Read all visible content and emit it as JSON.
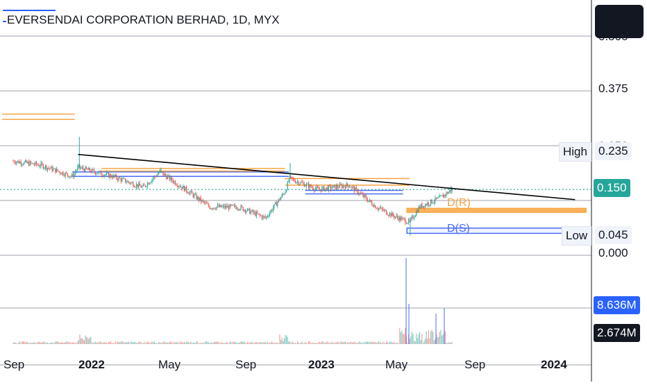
{
  "header": {
    "title": "EVERSENDAI CORPORATION BERHAD, 1D, MYX"
  },
  "colors": {
    "up": "#26a69a",
    "down": "#ef5350",
    "grid": "#b2b5be",
    "zone_orange": "#f7a440",
    "zone_blue": "#4a6cf7",
    "trend": "#000000",
    "last_price_bg": "#26a69a",
    "volume_badge_blue": "#2962ff",
    "volume_badge_dark": "#131722"
  },
  "icons": {
    "corner": "square-panel-icon"
  },
  "chart_data": {
    "type": "candlestick",
    "title": "EVERSENDAI CORPORATION BERHAD, 1D, MYX",
    "price_axis": {
      "ticks": [
        "0.500",
        "0.375",
        "0.250",
        "0.125",
        "0.000"
      ],
      "visible_ticks": [
        "0.375",
        "0.125",
        "0.000"
      ],
      "ylim": [
        -0.01,
        0.52
      ]
    },
    "time_axis": {
      "labels": [
        "Sep",
        "2022",
        "May",
        "Sep",
        "2023",
        "May",
        "Sep",
        "2024"
      ],
      "bold": [
        "2022",
        "2023",
        "2024"
      ]
    },
    "markers": {
      "high": {
        "label": "High",
        "value": "0.235"
      },
      "low": {
        "label": "Low",
        "value": "0.045"
      },
      "last": {
        "value": "0.150"
      }
    },
    "volume": {
      "badges": [
        "8.636M",
        "2.674M"
      ]
    },
    "zones": [
      {
        "label": "D(R)",
        "color": "orange",
        "from": "2023-05-01",
        "to": "2024-02-01",
        "top": 0.107,
        "bottom": 0.098
      },
      {
        "label": "D(S)",
        "color": "blue",
        "from": "2023-05-01",
        "to": "2024-01-25",
        "top": 0.062,
        "bottom": 0.05
      }
    ],
    "levels": [
      {
        "color": "orange",
        "from": "2021-08-15",
        "to": "2021-12-05",
        "values": [
          0.322,
          0.31
        ]
      },
      {
        "color": "blue",
        "from": "2021-12-01",
        "to": "2022-10-31",
        "values": [
          0.19,
          0.18
        ]
      },
      {
        "color": "orange",
        "from": "2022-01-15",
        "to": "2022-10-25",
        "values": [
          0.198,
          0.192
        ]
      },
      {
        "color": "orange",
        "from": "2022-10-25",
        "to": "2023-05-05",
        "values": [
          0.175,
          0.16
        ]
      },
      {
        "color": "blue",
        "from": "2022-11-25",
        "to": "2023-04-25",
        "values": [
          0.148,
          0.14
        ]
      }
    ],
    "trendline": {
      "from": [
        "2021-12-10",
        0.23
      ],
      "to": [
        "2024-01-15",
        0.127
      ]
    },
    "anchor_candles": [
      [
        "2021-09-01",
        0.215
      ],
      [
        "2021-10-15",
        0.205
      ],
      [
        "2021-12-01",
        0.18
      ],
      [
        "2021-12-10",
        0.2
      ],
      [
        "2022-02-01",
        0.18
      ],
      [
        "2022-03-20",
        0.155
      ],
      [
        "2022-04-15",
        0.19
      ],
      [
        "2022-05-20",
        0.155
      ],
      [
        "2022-07-01",
        0.11
      ],
      [
        "2022-08-15",
        0.11
      ],
      [
        "2022-09-25",
        0.085
      ],
      [
        "2022-10-25",
        0.145
      ],
      [
        "2022-11-01",
        0.175
      ],
      [
        "2022-12-15",
        0.15
      ],
      [
        "2023-02-01",
        0.16
      ],
      [
        "2023-03-15",
        0.11
      ],
      [
        "2023-04-10",
        0.09
      ],
      [
        "2023-05-05",
        0.075
      ],
      [
        "2023-05-20",
        0.11
      ],
      [
        "2023-06-20",
        0.13
      ],
      [
        "2023-07-10",
        0.15
      ]
    ]
  }
}
